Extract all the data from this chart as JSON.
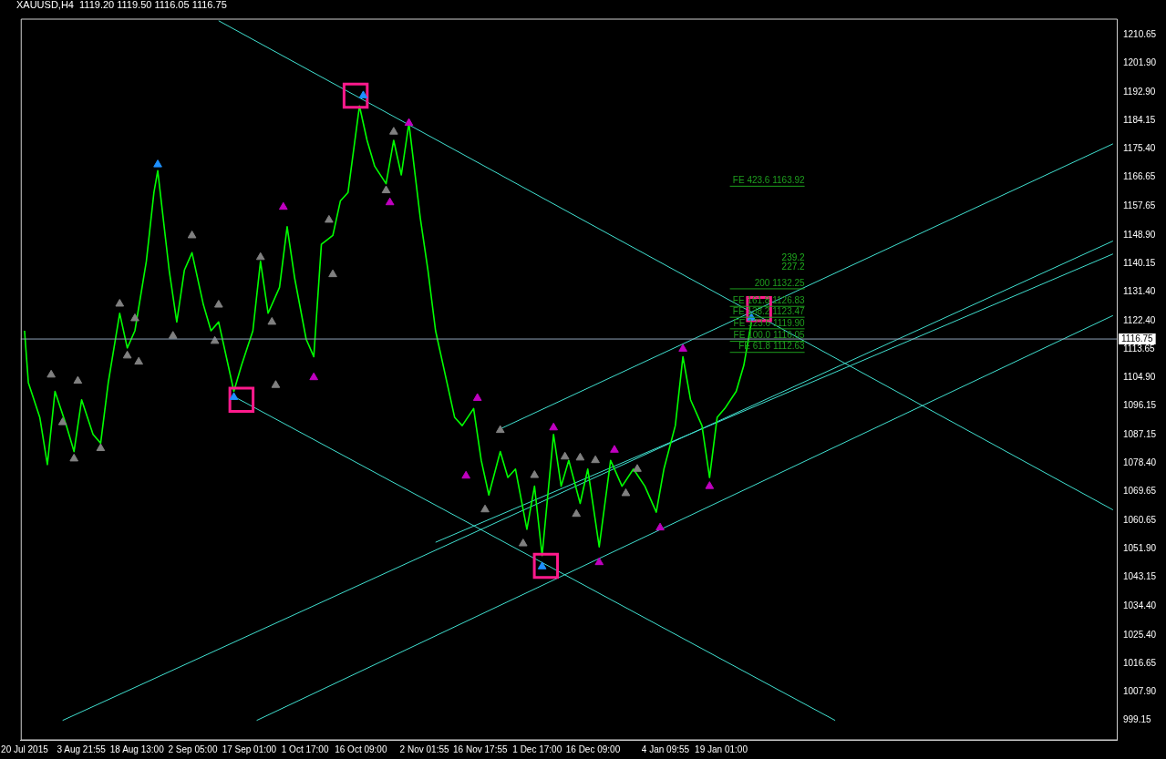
{
  "chart_data": {
    "type": "line",
    "title": "XAUUSD,H4  1119.20 1119.50 1116.05 1116.75",
    "xlim": [
      "2015-07-19",
      "2016-05-02"
    ],
    "ylim": [
      993,
      1215.5
    ],
    "xticks": [
      {
        "value": "2015-07-20",
        "label": "20 Jul 2015"
      },
      {
        "value": "2015-08-03T21:55",
        "label": "3 Aug 21:55"
      },
      {
        "value": "2015-08-18T13:00",
        "label": "18 Aug 13:00"
      },
      {
        "value": "2015-09-02T05:00",
        "label": "2 Sep 05:00"
      },
      {
        "value": "2015-09-17T01:00",
        "label": "17 Sep 01:00"
      },
      {
        "value": "2015-10-01T17:00",
        "label": "1 Oct 17:00"
      },
      {
        "value": "2015-10-16T09:00",
        "label": "16 Oct 09:00"
      },
      {
        "value": "2015-11-02T01:55",
        "label": "2 Nov 01:55"
      },
      {
        "value": "2015-11-16T17:55",
        "label": "16 Nov 17:55"
      },
      {
        "value": "2015-12-01T17:00",
        "label": "1 Dec 17:00"
      },
      {
        "value": "2015-12-16T09:00",
        "label": "16 Dec 09:00"
      },
      {
        "value": "2016-01-04T09:55",
        "label": "4 Jan 09:55"
      },
      {
        "value": "2016-01-19T01:00",
        "label": "19 Jan 01:00"
      }
    ],
    "yticks": [
      {
        "value": 1210.65,
        "label": "1210.65"
      },
      {
        "value": 1201.9,
        "label": "1201.90"
      },
      {
        "value": 1192.9,
        "label": "1192.90"
      },
      {
        "value": 1184.15,
        "label": "1184.15"
      },
      {
        "value": 1175.4,
        "label": "1175.40"
      },
      {
        "value": 1166.65,
        "label": "1166.65"
      },
      {
        "value": 1157.65,
        "label": "1157.65"
      },
      {
        "value": 1148.9,
        "label": "1148.90"
      },
      {
        "value": 1140.15,
        "label": "1140.15"
      },
      {
        "value": 1131.4,
        "label": "1131.40"
      },
      {
        "value": 1122.4,
        "label": "1122.40"
      },
      {
        "value": 1113.65,
        "label": "1113.65"
      },
      {
        "value": 1104.9,
        "label": "1104.90"
      },
      {
        "value": 1096.15,
        "label": "1096.15"
      },
      {
        "value": 1087.15,
        "label": "1087.15"
      },
      {
        "value": 1078.4,
        "label": "1078.40"
      },
      {
        "value": 1069.65,
        "label": "1069.65"
      },
      {
        "value": 1060.65,
        "label": "1060.65"
      },
      {
        "value": 1051.9,
        "label": "1051.90"
      },
      {
        "value": 1043.15,
        "label": "1043.15"
      },
      {
        "value": 1034.4,
        "label": "1034.40"
      },
      {
        "value": 1025.4,
        "label": "1025.40"
      },
      {
        "value": 1016.65,
        "label": "1016.65"
      },
      {
        "value": 1007.9,
        "label": "1007.90"
      },
      {
        "value": 999.15,
        "label": "999.15"
      }
    ],
    "grid": false,
    "legend": false,
    "annotations": [
      "239.2",
      "227.2"
    ],
    "ref_lines": [
      {
        "axis": "y",
        "value": 1116.75,
        "label": "1116.75",
        "color": "#8fa3b8"
      },
      {
        "axis": "y",
        "value": 1163.92,
        "label": "FE 423.6 1163.92",
        "color": "#1e9e1e"
      },
      {
        "axis": "y",
        "value": 1132.25,
        "label": "200 1132.25",
        "color": "#1e9e1e"
      },
      {
        "axis": "y",
        "value": 1126.83,
        "label": "FE 161.8 1126.83",
        "color": "#1e9e1e"
      },
      {
        "axis": "y",
        "value": 1123.47,
        "label": "FE 138.2 1123.47",
        "color": "#1e9e1e"
      },
      {
        "axis": "y",
        "value": 1119.9,
        "label": "FE 123.6 1119.90",
        "color": "#1e9e1e"
      },
      {
        "axis": "y",
        "value": 1116.05,
        "label": "FE 100.0 1116.05",
        "color": "#1e9e1e"
      },
      {
        "axis": "y",
        "value": 1112.63,
        "label": "FE 61.8 1112.63",
        "color": "#1e9e1e"
      }
    ],
    "series": [
      {
        "color": "#00ff00",
        "x": [
          "2015-07-20",
          "2015-07-21",
          "2015-07-24",
          "2015-07-26",
          "2015-07-28",
          "2015-07-31",
          "2015-08-02",
          "2015-08-04",
          "2015-08-07",
          "2015-08-09",
          "2015-08-11",
          "2015-08-14",
          "2015-08-16",
          "2015-08-18",
          "2015-08-21",
          "2015-08-23",
          "2015-08-24",
          "2015-08-27",
          "2015-08-29",
          "2015-08-31",
          "2015-09-02",
          "2015-09-05",
          "2015-09-07",
          "2015-09-09",
          "2015-09-12",
          "2015-09-13",
          "2015-09-15",
          "2015-09-18",
          "2015-09-20",
          "2015-09-22",
          "2015-09-25",
          "2015-09-27",
          "2015-09-29",
          "2015-10-02",
          "2015-10-04",
          "2015-10-06",
          "2015-10-09",
          "2015-10-11",
          "2015-10-13",
          "2015-10-16",
          "2015-10-18",
          "2015-10-20",
          "2015-10-23",
          "2015-10-25",
          "2015-10-27",
          "2015-10-29",
          "2015-11-01",
          "2015-11-03",
          "2015-11-05",
          "2015-11-08",
          "2015-11-10",
          "2015-11-12",
          "2015-11-15",
          "2015-11-17",
          "2015-11-19",
          "2015-11-22",
          "2015-11-24",
          "2015-11-26",
          "2015-11-29",
          "2015-12-01",
          "2015-12-03",
          "2015-12-06",
          "2015-12-08",
          "2015-12-10",
          "2015-12-13",
          "2015-12-15",
          "2015-12-18",
          "2015-12-21",
          "2015-12-24",
          "2015-12-27",
          "2015-12-30",
          "2016-01-02",
          "2016-01-04",
          "2016-01-07",
          "2016-01-09",
          "2016-01-11",
          "2016-01-14",
          "2016-01-16",
          "2016-01-18",
          "2016-01-20",
          "2016-01-23",
          "2016-01-25",
          "2016-01-27"
        ],
        "values": [
          1119.3,
          1103.3,
          1092.6,
          1078.0,
          1100.6,
          1090.0,
          1082.0,
          1098.0,
          1087.3,
          1084.6,
          1103.3,
          1124.7,
          1114.0,
          1119.3,
          1140.7,
          1162.0,
          1168.7,
          1138.0,
          1122.0,
          1138.0,
          1143.4,
          1127.3,
          1119.3,
          1122.0,
          1106.0,
          1100.6,
          1108.6,
          1119.3,
          1140.7,
          1124.7,
          1132.7,
          1151.4,
          1135.4,
          1116.7,
          1111.3,
          1146.0,
          1148.7,
          1159.4,
          1162.0,
          1188.7,
          1178.1,
          1170.1,
          1164.7,
          1178.1,
          1167.4,
          1183.4,
          1154.0,
          1138.0,
          1119.3,
          1103.3,
          1092.6,
          1090.0,
          1095.3,
          1079.3,
          1068.6,
          1082.0,
          1074.0,
          1076.6,
          1058.0,
          1071.3,
          1049.9,
          1087.3,
          1071.3,
          1079.3,
          1066.0,
          1076.6,
          1052.6,
          1079.3,
          1071.3,
          1076.6,
          1071.3,
          1063.3,
          1076.6,
          1090.0,
          1111.3,
          1098.0,
          1090.0,
          1074.0,
          1092.6,
          1095.3,
          1100.6,
          1108.6,
          1122.0
        ]
      },
      {
        "type": "line",
        "color": "#40e0d0",
        "x": [
          "2015-09-09",
          "2016-05-01"
        ],
        "values": [
          1215,
          1064
        ]
      },
      {
        "type": "line",
        "color": "#40e0d0",
        "x": [
          "2015-09-13",
          "2016-02-18"
        ],
        "values": [
          1099,
          999
        ]
      },
      {
        "type": "line",
        "color": "#40e0d0",
        "x": [
          "2015-11-22",
          "2016-05-01"
        ],
        "values": [
          1089,
          1177
        ]
      },
      {
        "type": "line",
        "color": "#40e0d0",
        "x": [
          "2015-07-30",
          "2016-05-01"
        ],
        "values": [
          999,
          1147
        ]
      },
      {
        "type": "line",
        "color": "#40e0d0",
        "x": [
          "2015-11-05",
          "2016-05-01"
        ],
        "values": [
          1054,
          1143
        ]
      },
      {
        "type": "line",
        "color": "#40e0d0",
        "x": [
          "2015-09-19",
          "2016-05-01"
        ],
        "values": [
          999,
          1124
        ]
      },
      {
        "type": "scatter",
        "marker": "triangle",
        "color": "#1e90ff",
        "x": [
          "2015-08-24",
          "2015-10-17",
          "2015-09-13",
          "2015-12-03",
          "2016-01-27"
        ],
        "values": [
          1170.6,
          1191.9,
          1098.8,
          1046.5,
          1123.3
        ]
      },
      {
        "type": "scatter",
        "marker": "triangle",
        "color": "#c000c0",
        "x": [
          "2015-09-26",
          "2015-10-04",
          "2015-10-29",
          "2015-10-24",
          "2015-11-16",
          "2015-11-13",
          "2015-12-06",
          "2015-12-22",
          "2015-12-18",
          "2016-01-03",
          "2016-01-09",
          "2016-01-16"
        ],
        "values": [
          1157.5,
          1104.9,
          1183.4,
          1158.9,
          1098.5,
          1074.5,
          1089.4,
          1082.5,
          1047.8,
          1058.5,
          1113.7,
          1071.3
        ]
      },
      {
        "type": "scatter",
        "marker": "triangle",
        "color": "#808080",
        "x": [
          "2015-07-27",
          "2015-07-30",
          "2015-08-02",
          "2015-08-03",
          "2015-08-09",
          "2015-08-14",
          "2015-08-18",
          "2015-08-16",
          "2015-08-19",
          "2015-08-28",
          "2015-09-02",
          "2015-09-08",
          "2015-09-09",
          "2015-09-20",
          "2015-09-23",
          "2015-09-24",
          "2015-10-08",
          "2015-10-09",
          "2015-10-25",
          "2015-10-23",
          "2015-11-22",
          "2015-11-18",
          "2015-11-28",
          "2015-12-01",
          "2015-12-09",
          "2015-12-13",
          "2015-12-12",
          "2015-12-17",
          "2015-12-28",
          "2015-12-25"
        ],
        "values": [
          1105.7,
          1091.0,
          1079.8,
          1103.8,
          1083.0,
          1127.6,
          1123.1,
          1111.6,
          1109.7,
          1117.7,
          1148.7,
          1116.1,
          1127.3,
          1142.0,
          1122.0,
          1102.5,
          1153.5,
          1136.7,
          1180.7,
          1162.6,
          1088.6,
          1064.1,
          1053.6,
          1074.7,
          1080.4,
          1080.1,
          1062.7,
          1079.3,
          1076.6,
          1069.1
        ]
      },
      {
        "type": "scatter",
        "marker": "square",
        "color": "#ff1a8c",
        "x": [
          "2015-10-15",
          "2015-09-15",
          "2015-12-04",
          "2016-01-29"
        ],
        "values": [
          1191.9,
          1098.0,
          1046.7,
          1126.0
        ]
      }
    ]
  }
}
